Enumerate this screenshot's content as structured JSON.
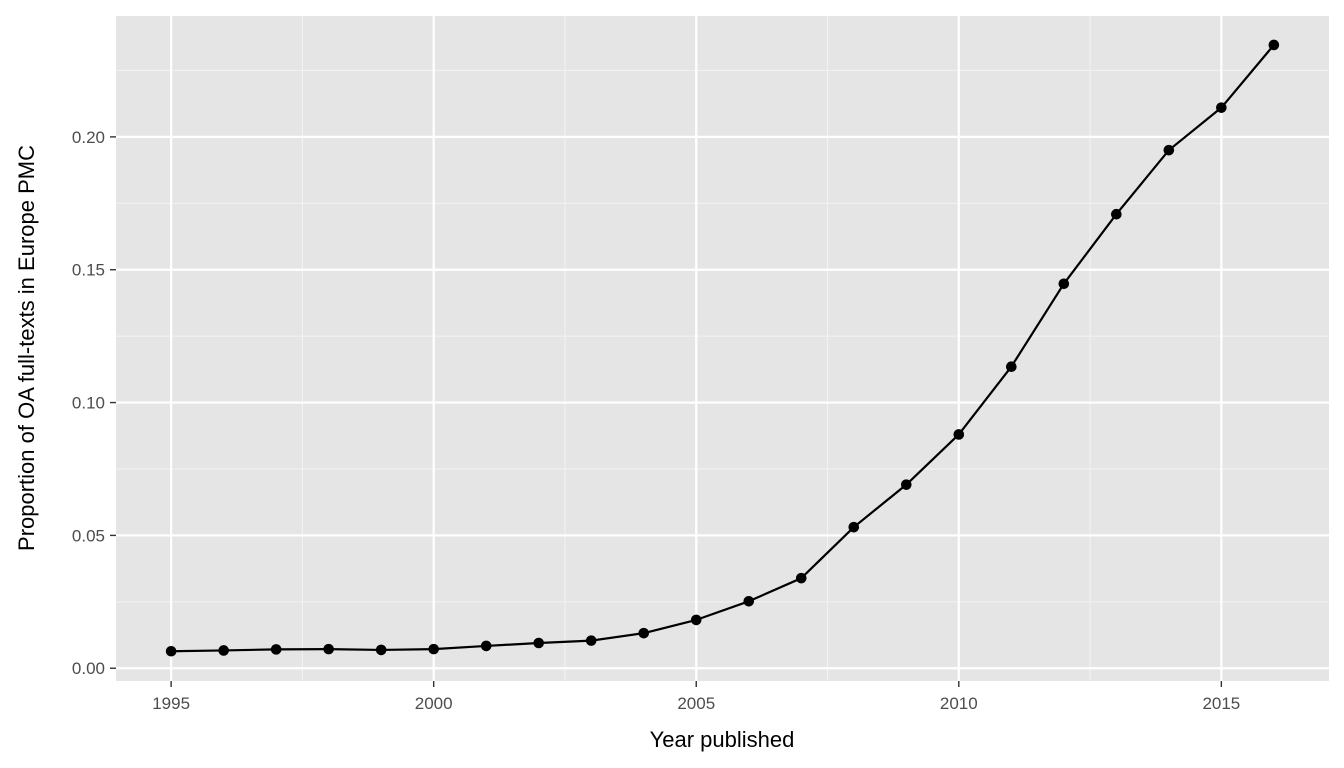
{
  "chart_data": {
    "type": "line",
    "title": "",
    "xlabel": "Year published",
    "ylabel": "Proportion of OA full-texts in Europe PMC",
    "xlim": [
      1993.95,
      2017.05
    ],
    "ylim": [
      -0.0048,
      0.2455
    ],
    "x_ticks": [
      1995,
      2000,
      2005,
      2010,
      2015
    ],
    "x_tick_labels": [
      "1995",
      "2000",
      "2005",
      "2010",
      "2015"
    ],
    "y_ticks": [
      0.0,
      0.05,
      0.1,
      0.15,
      0.2
    ],
    "y_tick_labels": [
      "0.00",
      "0.05",
      "0.10",
      "0.15",
      "0.20"
    ],
    "grid": true,
    "legend": "none",
    "colors": {
      "panel_background": "#e5e5e5",
      "grid_major": "#ffffff",
      "grid_minor": "#f2f2f2",
      "line": "#000000",
      "point": "#000000"
    },
    "series": [
      {
        "x": [
          1995,
          1996,
          1997,
          1998,
          1999,
          2000,
          2001,
          2002,
          2003,
          2004,
          2005,
          2006,
          2007,
          2008,
          2009,
          2010,
          2011,
          2012,
          2013,
          2014,
          2015,
          2016
        ],
        "values": [
          0.0064,
          0.0067,
          0.0071,
          0.0072,
          0.0069,
          0.0072,
          0.0084,
          0.0095,
          0.0104,
          0.0132,
          0.0182,
          0.0252,
          0.0339,
          0.0531,
          0.0691,
          0.088,
          0.1135,
          0.1447,
          0.1709,
          0.195,
          0.211,
          0.2346
        ]
      }
    ]
  }
}
